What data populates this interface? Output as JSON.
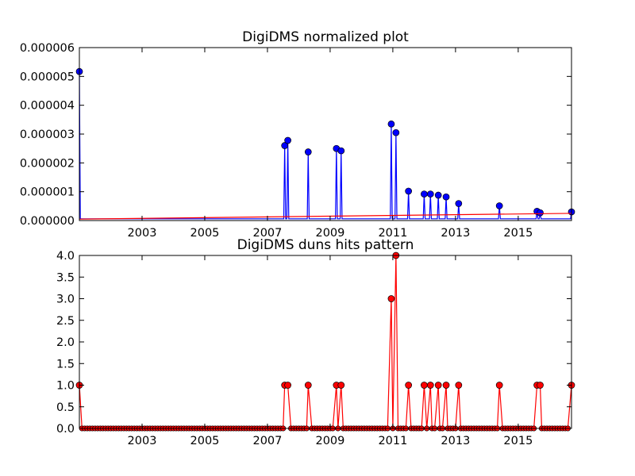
{
  "chart_data": [
    {
      "type": "line",
      "title": "DigiDMS normalized plot",
      "xlabel": "",
      "ylabel": "",
      "xlim": [
        2001.0,
        2016.7
      ],
      "ylim": [
        0,
        6e-06
      ],
      "x_ticks": [
        2003,
        2005,
        2007,
        2009,
        2011,
        2013,
        2015
      ],
      "x_tick_labels": [
        "2003",
        "2005",
        "2007",
        "2009",
        "2011",
        "2013",
        "2015"
      ],
      "y_ticks": [
        0,
        1e-06,
        2e-06,
        3e-06,
        4e-06,
        5e-06,
        6e-06
      ],
      "y_tick_labels": [
        "0.000000",
        "0.000001",
        "0.000002",
        "0.000003",
        "0.000004",
        "0.000005",
        "0.000006"
      ],
      "grid": false,
      "series": [
        {
          "color": "#0000ff",
          "marker": "circle",
          "points": [
            [
              2001.0,
              5.17e-06
            ],
            [
              2007.55,
              2.6e-06
            ],
            [
              2007.65,
              2.78e-06
            ],
            [
              2008.3,
              2.38e-06
            ],
            [
              2009.2,
              2.5e-06
            ],
            [
              2009.35,
              2.42e-06
            ],
            [
              2010.95,
              3.35e-06
            ],
            [
              2011.1,
              3.05e-06
            ],
            [
              2011.5,
              1.02e-06
            ],
            [
              2012.0,
              9.2e-07
            ],
            [
              2012.2,
              9.2e-07
            ],
            [
              2012.45,
              8.8e-07
            ],
            [
              2012.7,
              8.2e-07
            ],
            [
              2013.1,
              5.9e-07
            ],
            [
              2014.4,
              5.1e-07
            ],
            [
              2015.6,
              3.2e-07
            ],
            [
              2015.7,
              2.7e-07
            ],
            [
              2016.7,
              3e-07
            ]
          ]
        },
        {
          "color": "#ff0000",
          "marker": "none",
          "points": [
            [
              2001.0,
              5e-08
            ],
            [
              2016.7,
              2.5e-07
            ]
          ]
        }
      ]
    },
    {
      "type": "line",
      "title": "DigiDMS duns hits pattern",
      "xlabel": "",
      "ylabel": "",
      "xlim": [
        2001.0,
        2016.7
      ],
      "ylim": [
        0,
        4.0
      ],
      "x_ticks": [
        2003,
        2005,
        2007,
        2009,
        2011,
        2013,
        2015
      ],
      "x_tick_labels": [
        "2003",
        "2005",
        "2007",
        "2009",
        "2011",
        "2013",
        "2015"
      ],
      "y_ticks": [
        0,
        0.5,
        1.0,
        1.5,
        2.0,
        2.5,
        3.0,
        3.5,
        4.0
      ],
      "y_tick_labels": [
        "0.0",
        "0.5",
        "1.0",
        "1.5",
        "2.0",
        "2.5",
        "3.0",
        "3.5",
        "4.0"
      ],
      "grid": false,
      "series": [
        {
          "color": "#ff0000",
          "marker": "circle",
          "baseline_value": 0,
          "points": [
            [
              2001.0,
              1
            ],
            [
              2007.55,
              1
            ],
            [
              2007.65,
              1
            ],
            [
              2008.3,
              1
            ],
            [
              2009.2,
              1
            ],
            [
              2009.35,
              1
            ],
            [
              2010.95,
              3
            ],
            [
              2011.1,
              4
            ],
            [
              2011.5,
              1
            ],
            [
              2012.0,
              1
            ],
            [
              2012.2,
              1
            ],
            [
              2012.45,
              1
            ],
            [
              2012.7,
              1
            ],
            [
              2013.1,
              1
            ],
            [
              2014.4,
              1
            ],
            [
              2015.6,
              1
            ],
            [
              2015.7,
              1
            ],
            [
              2016.7,
              1
            ]
          ]
        }
      ]
    }
  ]
}
